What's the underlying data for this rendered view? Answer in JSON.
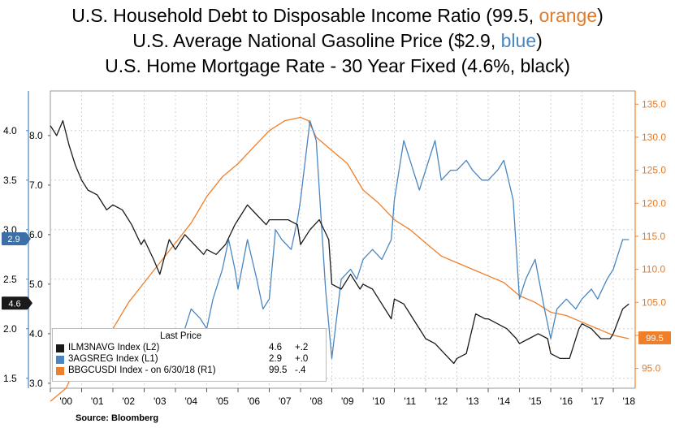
{
  "titles": {
    "line1_prefix": "U.S. Household Debt to Disposable Income Ratio (99.5, ",
    "line1_color_word": "orange",
    "line1_suffix": ")",
    "line2_prefix": "U.S. Average National Gasoline Price ($2.9, ",
    "line2_color_word": "blue",
    "line2_suffix": ")",
    "line3": "U.S. Home Mortgage Rate - 30 Year Fixed (4.6%, black)"
  },
  "source": "Source: Bloomberg",
  "legend": {
    "header": "Last Price",
    "rows": [
      {
        "name": "ILM3NAVG Index  (L2)",
        "value": "4.6",
        "change": "+.2",
        "color": "#1a1a1a"
      },
      {
        "name": "3AGSREG Index  (L1)",
        "value": "2.9",
        "change": "+.0",
        "color": "#4a86c0"
      },
      {
        "name": "BBGCUSDI Index  -  on 6/30/18  (R1)",
        "value": "99.5",
        "change": "-.4",
        "color": "#f07f2a"
      }
    ]
  },
  "chart_data": {
    "type": "line",
    "x_tick_labels": [
      "'00",
      "'01",
      "'02",
      "'03",
      "'04",
      "'05",
      "'06",
      "'07",
      "'08",
      "'09",
      "'10",
      "'11",
      "'12",
      "'13",
      "'14",
      "'15",
      "'16",
      "'17",
      "'18"
    ],
    "xlim": [
      2000,
      2018.7
    ],
    "axes": {
      "left_outer": {
        "ticks": [
          "1.5",
          "2.0",
          "2.5",
          "3.0",
          "3.5",
          "4.0"
        ],
        "range": [
          1.4,
          4.4
        ],
        "color": "#000000"
      },
      "left_inner": {
        "ticks": [
          "3.0",
          "4.0",
          "5.0",
          "6.0",
          "7.0",
          "8.0"
        ],
        "range": [
          2.9,
          8.9
        ],
        "color": "#000000"
      },
      "right": {
        "ticks": [
          "95.0",
          "100.0",
          "105.0",
          "110.0",
          "115.0",
          "120.0",
          "125.0",
          "130.0",
          "135.0"
        ],
        "range": [
          92,
          137
        ],
        "color": "#e07b2b"
      }
    },
    "last_price_tags": [
      {
        "label": "2.9",
        "series": "gasoline",
        "color": "#3b6fa5"
      },
      {
        "label": "4.6",
        "series": "mortgage",
        "color": "#1a1a1a"
      },
      {
        "label": "99.5",
        "series": "debt_ratio",
        "color": "#f07f2a"
      }
    ],
    "series": [
      {
        "key": "debt_ratio",
        "axis": "right",
        "color": "#f07f2a",
        "x": [
          2000.0,
          2000.5,
          2001.0,
          2001.5,
          2002.0,
          2002.5,
          2003.0,
          2003.5,
          2004.0,
          2004.5,
          2005.0,
          2005.5,
          2006.0,
          2006.5,
          2007.0,
          2007.5,
          2008.0,
          2008.25,
          2008.5,
          2009.0,
          2009.5,
          2010.0,
          2010.5,
          2011.0,
          2011.5,
          2012.0,
          2012.5,
          2013.0,
          2013.5,
          2014.0,
          2014.5,
          2015.0,
          2015.5,
          2016.0,
          2016.5,
          2017.0,
          2017.5,
          2018.0,
          2018.5
        ],
        "values": [
          90.0,
          92.0,
          97.0,
          100.0,
          101.0,
          105.0,
          108.0,
          111.0,
          114.0,
          117.0,
          121.0,
          124.0,
          126.0,
          128.5,
          131.0,
          132.5,
          133.0,
          132.5,
          130.0,
          128.0,
          126.0,
          122.0,
          120.0,
          117.5,
          116.0,
          114.0,
          112.0,
          111.0,
          110.0,
          109.0,
          108.0,
          106.0,
          105.0,
          103.5,
          103.0,
          102.0,
          101.0,
          100.0,
          99.5
        ]
      },
      {
        "key": "gasoline",
        "axis": "left_outer",
        "color": "#4a86c0",
        "x": [
          2004.0,
          2004.2,
          2004.5,
          2004.8,
          2005.0,
          2005.2,
          2005.5,
          2005.7,
          2005.9,
          2006.0,
          2006.3,
          2006.6,
          2006.8,
          2007.0,
          2007.2,
          2007.4,
          2007.7,
          2007.9,
          2008.0,
          2008.3,
          2008.5,
          2008.8,
          2009.0,
          2009.3,
          2009.6,
          2009.8,
          2010.0,
          2010.3,
          2010.6,
          2010.9,
          2011.0,
          2011.3,
          2011.5,
          2011.8,
          2012.0,
          2012.3,
          2012.5,
          2012.8,
          2013.0,
          2013.3,
          2013.5,
          2013.8,
          2014.0,
          2014.3,
          2014.5,
          2014.8,
          2015.0,
          2015.2,
          2015.5,
          2015.8,
          2016.0,
          2016.2,
          2016.5,
          2016.8,
          2017.0,
          2017.3,
          2017.5,
          2017.8,
          2018.0,
          2018.3,
          2018.5
        ],
        "values": [
          1.9,
          1.9,
          2.2,
          2.1,
          2.0,
          2.3,
          2.6,
          2.9,
          2.6,
          2.4,
          2.9,
          2.5,
          2.2,
          2.3,
          3.0,
          2.9,
          2.8,
          3.1,
          3.3,
          4.1,
          3.9,
          2.4,
          1.7,
          2.5,
          2.6,
          2.5,
          2.7,
          2.8,
          2.7,
          2.9,
          3.3,
          3.9,
          3.7,
          3.4,
          3.6,
          3.9,
          3.5,
          3.6,
          3.6,
          3.7,
          3.6,
          3.5,
          3.5,
          3.6,
          3.7,
          3.3,
          2.3,
          2.5,
          2.7,
          2.2,
          1.9,
          2.2,
          2.3,
          2.2,
          2.3,
          2.4,
          2.3,
          2.5,
          2.6,
          2.9,
          2.9
        ]
      },
      {
        "key": "mortgage",
        "axis": "left_inner",
        "color": "#1a1a1a",
        "x": [
          2000.0,
          2000.2,
          2000.4,
          2000.6,
          2000.8,
          2001.0,
          2001.2,
          2001.5,
          2001.8,
          2002.0,
          2002.3,
          2002.6,
          2002.9,
          2003.0,
          2003.3,
          2003.5,
          2003.8,
          2004.0,
          2004.3,
          2004.6,
          2004.9,
          2005.0,
          2005.3,
          2005.6,
          2005.9,
          2006.0,
          2006.3,
          2006.6,
          2006.9,
          2007.0,
          2007.3,
          2007.6,
          2007.9,
          2008.0,
          2008.3,
          2008.6,
          2008.9,
          2009.0,
          2009.3,
          2009.6,
          2009.9,
          2010.0,
          2010.3,
          2010.6,
          2010.9,
          2011.0,
          2011.3,
          2011.6,
          2011.9,
          2012.0,
          2012.3,
          2012.6,
          2012.9,
          2013.0,
          2013.3,
          2013.6,
          2013.9,
          2014.0,
          2014.3,
          2014.6,
          2014.9,
          2015.0,
          2015.3,
          2015.6,
          2015.9,
          2016.0,
          2016.3,
          2016.6,
          2016.9,
          2017.0,
          2017.3,
          2017.6,
          2017.9,
          2018.0,
          2018.3,
          2018.5
        ],
        "values": [
          8.2,
          8.0,
          8.3,
          7.8,
          7.4,
          7.1,
          6.9,
          6.8,
          6.5,
          6.6,
          6.5,
          6.2,
          5.8,
          5.9,
          5.5,
          5.2,
          5.9,
          5.7,
          6.0,
          5.8,
          5.6,
          5.7,
          5.6,
          5.8,
          6.2,
          6.3,
          6.6,
          6.4,
          6.2,
          6.3,
          6.3,
          6.3,
          6.2,
          5.8,
          6.1,
          6.3,
          5.9,
          5.0,
          4.9,
          5.2,
          4.9,
          5.0,
          4.9,
          4.6,
          4.3,
          4.7,
          4.6,
          4.3,
          4.0,
          3.9,
          3.8,
          3.6,
          3.4,
          3.5,
          3.6,
          4.4,
          4.3,
          4.3,
          4.2,
          4.1,
          3.9,
          3.8,
          3.9,
          4.0,
          3.9,
          3.6,
          3.5,
          3.5,
          4.1,
          4.2,
          4.1,
          3.9,
          3.9,
          4.0,
          4.5,
          4.6
        ]
      }
    ]
  }
}
